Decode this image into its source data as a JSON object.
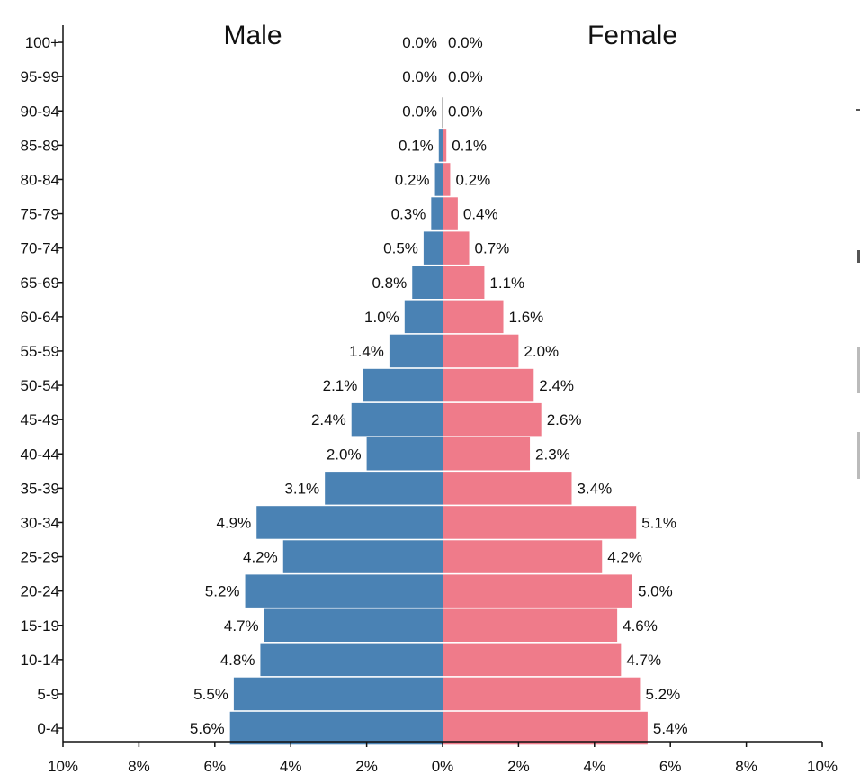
{
  "chart_data": {
    "type": "bar",
    "orientation": "horizontal-diverging",
    "title": "",
    "male_label": "Male",
    "female_label": "Female",
    "categories": [
      "100+",
      "95-99",
      "90-94",
      "85-89",
      "80-84",
      "75-79",
      "70-74",
      "65-69",
      "60-64",
      "55-59",
      "50-54",
      "45-49",
      "40-44",
      "35-39",
      "30-34",
      "25-29",
      "20-24",
      "15-19",
      "10-14",
      "5-9",
      "0-4"
    ],
    "series": [
      {
        "name": "Male",
        "color": "#4a82b4",
        "values": [
          0.0,
          0.0,
          0.0,
          0.1,
          0.2,
          0.3,
          0.5,
          0.8,
          1.0,
          1.4,
          2.1,
          2.4,
          2.0,
          3.1,
          4.9,
          4.2,
          5.2,
          4.7,
          4.8,
          5.5,
          5.6
        ],
        "labels": [
          "0.0%",
          "0.0%",
          "0.0%",
          "0.1%",
          "0.2%",
          "0.3%",
          "0.5%",
          "0.8%",
          "1.0%",
          "1.4%",
          "2.1%",
          "2.4%",
          "2.0%",
          "3.1%",
          "4.9%",
          "4.2%",
          "5.2%",
          "4.7%",
          "4.8%",
          "5.5%",
          "5.6%"
        ]
      },
      {
        "name": "Female",
        "color": "#ef7b8a",
        "values": [
          0.0,
          0.0,
          0.0,
          0.1,
          0.2,
          0.4,
          0.7,
          1.1,
          1.6,
          2.0,
          2.4,
          2.6,
          2.3,
          3.4,
          5.1,
          4.2,
          5.0,
          4.6,
          4.7,
          5.2,
          5.4
        ],
        "labels": [
          "0.0%",
          "0.0%",
          "0.0%",
          "0.1%",
          "0.2%",
          "0.4%",
          "0.7%",
          "1.1%",
          "1.6%",
          "2.0%",
          "2.4%",
          "2.6%",
          "2.3%",
          "3.4%",
          "5.1%",
          "4.2%",
          "5.0%",
          "4.6%",
          "4.7%",
          "5.2%",
          "5.4%"
        ]
      }
    ],
    "x_ticks": [
      -10,
      -8,
      -6,
      -4,
      -2,
      0,
      2,
      4,
      6,
      8,
      10
    ],
    "x_tick_labels": [
      "10%",
      "8%",
      "6%",
      "4%",
      "2%",
      "0%",
      "2%",
      "4%",
      "6%",
      "8%",
      "10%"
    ],
    "xlim": [
      -10,
      10
    ],
    "xlabel": "",
    "ylabel": "",
    "grid": false
  }
}
